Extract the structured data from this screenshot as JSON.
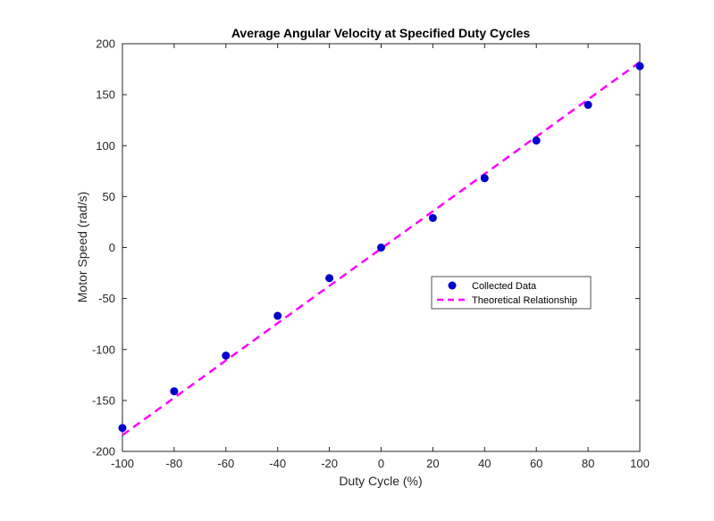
{
  "chart_data": {
    "type": "scatter",
    "title": "Average Angular Velocity at Specified Duty Cycles",
    "xlabel": "Duty Cycle (%)",
    "ylabel": "Motor Speed (rad/s)",
    "xlim": [
      -100,
      100
    ],
    "ylim": [
      -200,
      200
    ],
    "xticks": [
      "-100",
      "-80",
      "-60",
      "-40",
      "-20",
      "0",
      "20",
      "40",
      "60",
      "80",
      "100"
    ],
    "yticks": [
      "-200",
      "-150",
      "-100",
      "-50",
      "0",
      "50",
      "100",
      "150",
      "200"
    ],
    "grid": false,
    "legend_position": "right-middle",
    "series": [
      {
        "name": "Collected Data",
        "kind": "markers",
        "color": "#0000cc",
        "x": [
          -100,
          -80,
          -60,
          -40,
          -20,
          0,
          20,
          40,
          60,
          80,
          100
        ],
        "y": [
          -177,
          -141,
          -106,
          -67,
          -30,
          0,
          29,
          68,
          105,
          140,
          178
        ]
      },
      {
        "name": "Theoretical Relationship",
        "kind": "dashed-line",
        "color": "#ff00ff",
        "x": [
          -100,
          100
        ],
        "y": [
          -184,
          182
        ]
      }
    ]
  }
}
